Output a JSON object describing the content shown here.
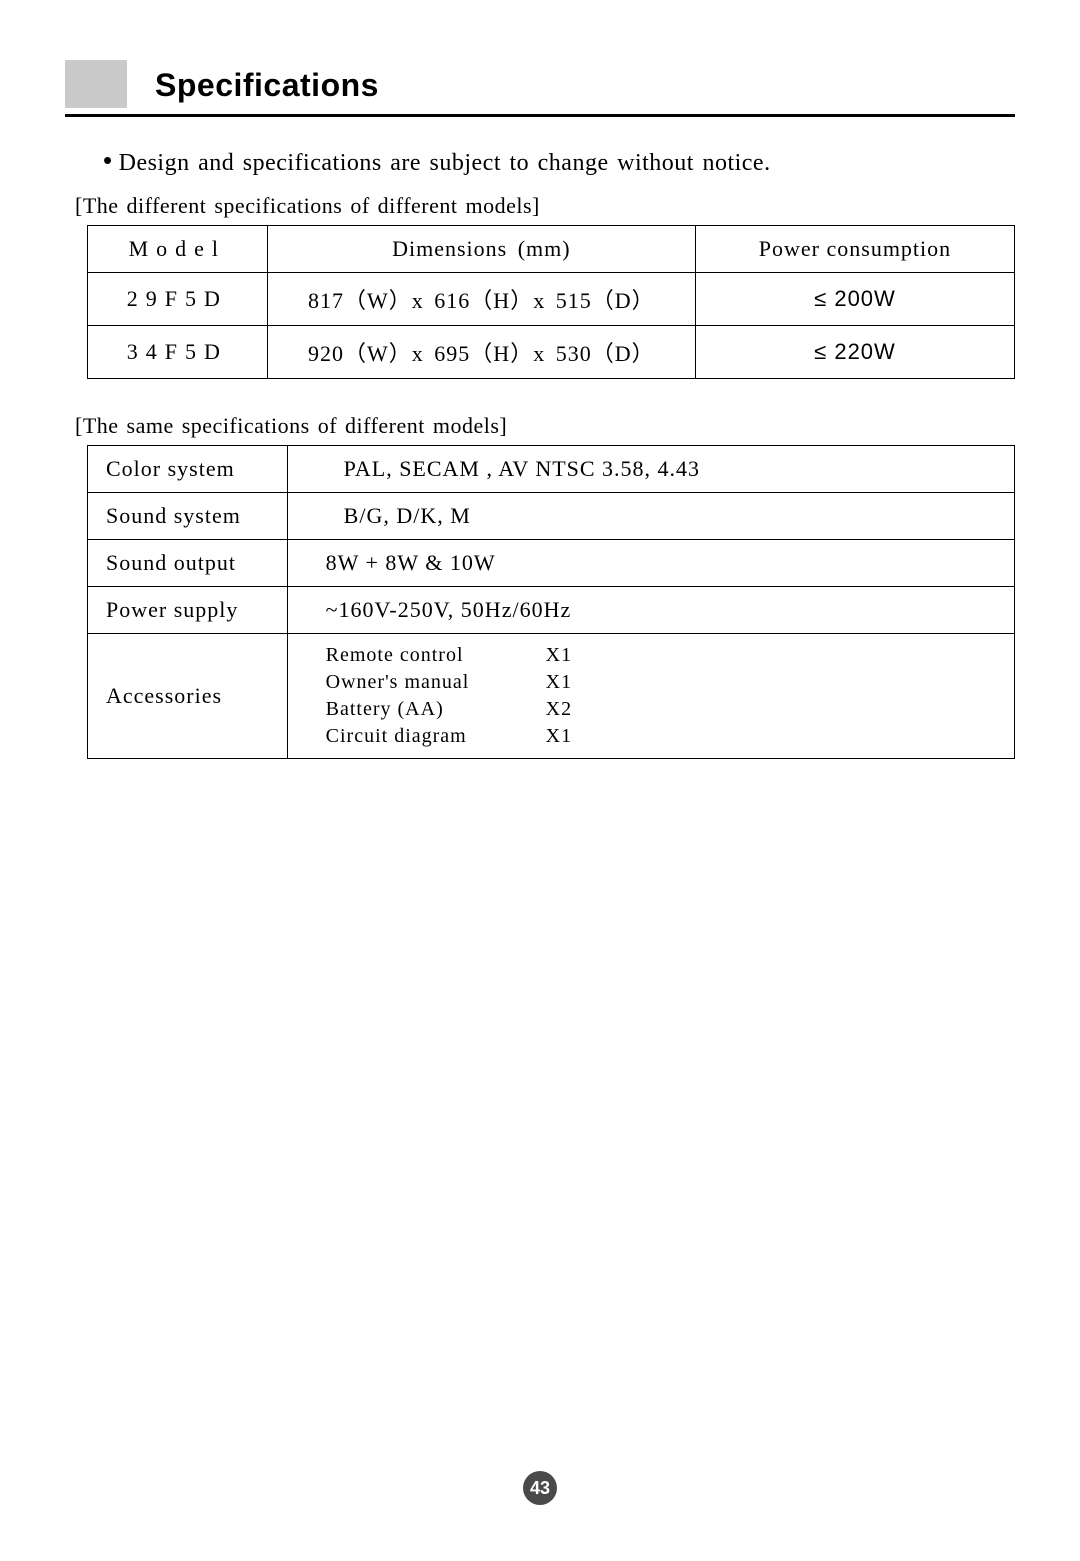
{
  "title": "Specifications",
  "bullet": "Design and specifications are subject to change without notice.",
  "section1_label": "[The different specifications of different models]",
  "table1": {
    "headers": {
      "model": "Model",
      "dimensions": "Dimensions (mm)",
      "power": "Power consumption"
    },
    "rows": [
      {
        "model": "29F5D",
        "dimensions": "817（W）x 616（H）x 515（D）",
        "power": "≤ 200W"
      },
      {
        "model": "34F5D",
        "dimensions": "920（W）x 695（H）x 530（D）",
        "power": "≤ 220W"
      }
    ]
  },
  "section2_label": "[The same specifications of different models]",
  "table2": {
    "rows": [
      {
        "key": "Color system",
        "val": "PAL, SECAM , AV NTSC 3.58, 4.43"
      },
      {
        "key": "Sound system",
        "val": "B/G, D/K, M"
      },
      {
        "key": "Sound output",
        "val": "8W + 8W  &  10W"
      },
      {
        "key": "Power supply",
        "val": "~160V-250V, 50Hz/60Hz"
      }
    ],
    "accessories_key": "Accessories",
    "accessories": [
      {
        "item": "Remote control",
        "qty": "X1"
      },
      {
        "item": "Owner's manual",
        "qty": "X1"
      },
      {
        "item": "Battery (AA)",
        "qty": "X2"
      },
      {
        "item": "Circuit diagram",
        "qty": "X1"
      }
    ]
  },
  "page_number": "43"
}
